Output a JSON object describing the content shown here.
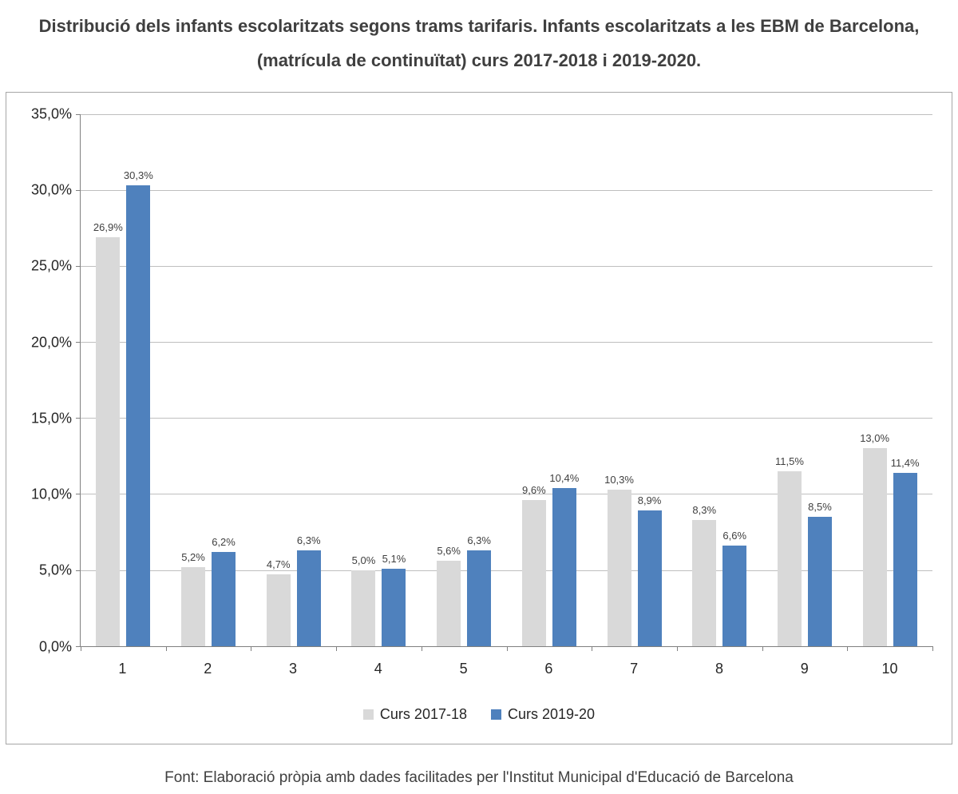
{
  "page": {
    "title": "Distribució dels infants escolaritzats segons trams tarifaris. Infants escolaritzats a les EBM de Barcelona, (matrícula de continuïtat) curs 2017-2018 i 2019-2020.",
    "footer": "Font: Elaboració pròpia amb dades facilitades per l'Institut Municipal d'Educació de Barcelona"
  },
  "chart_data": {
    "type": "bar",
    "title": "Distribució dels infants escolaritzats segons trams tarifaris. Infants escolaritzats a les EBM de Barcelona, (matrícula de continuïtat) curs 2017-2018 i 2019-2020.",
    "categories": [
      "1",
      "2",
      "3",
      "4",
      "5",
      "6",
      "7",
      "8",
      "9",
      "10"
    ],
    "series": [
      {
        "name": "Curs 2017-18",
        "color": "#d9d9d9",
        "values": [
          26.9,
          5.2,
          4.7,
          5.0,
          5.6,
          9.6,
          10.3,
          8.3,
          11.5,
          13.0
        ],
        "labels": [
          "26,9%",
          "5,2%",
          "4,7%",
          "5,0%",
          "5,6%",
          "9,6%",
          "10,3%",
          "8,3%",
          "11,5%",
          "13,0%"
        ]
      },
      {
        "name": "Curs 2019-20",
        "color": "#4f81bd",
        "values": [
          30.3,
          6.2,
          6.3,
          5.1,
          6.3,
          10.4,
          8.9,
          6.6,
          8.5,
          11.4
        ],
        "labels": [
          "30,3%",
          "6,2%",
          "6,3%",
          "5,1%",
          "6,3%",
          "10,4%",
          "8,9%",
          "6,6%",
          "8,5%",
          "11,4%"
        ]
      }
    ],
    "xlabel": "",
    "ylabel": "",
    "ylim": [
      0,
      35
    ],
    "ytick_step": 5,
    "ytick_labels": [
      "0,0%",
      "5,0%",
      "10,0%",
      "15,0%",
      "20,0%",
      "25,0%",
      "30,0%",
      "35,0%"
    ],
    "grid": true,
    "legend_position": "bottom"
  }
}
